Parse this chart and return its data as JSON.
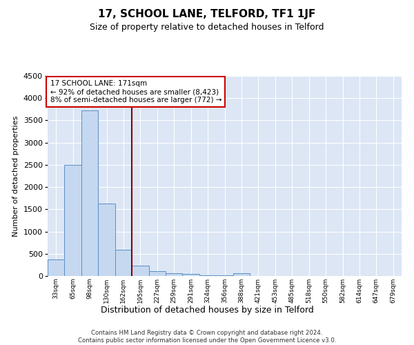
{
  "title": "17, SCHOOL LANE, TELFORD, TF1 1JF",
  "subtitle": "Size of property relative to detached houses in Telford",
  "xlabel": "Distribution of detached houses by size in Telford",
  "ylabel": "Number of detached properties",
  "categories": [
    "33sqm",
    "65sqm",
    "98sqm",
    "130sqm",
    "162sqm",
    "195sqm",
    "227sqm",
    "259sqm",
    "291sqm",
    "324sqm",
    "356sqm",
    "388sqm",
    "421sqm",
    "453sqm",
    "485sqm",
    "518sqm",
    "550sqm",
    "582sqm",
    "614sqm",
    "647sqm",
    "679sqm"
  ],
  "values": [
    370,
    2500,
    3720,
    1630,
    590,
    235,
    110,
    68,
    40,
    20,
    10,
    55,
    0,
    0,
    0,
    0,
    0,
    0,
    0,
    0,
    0
  ],
  "bar_color": "#c5d8f0",
  "bar_edge_color": "#5b8ec4",
  "vline_x": 4.5,
  "vline_color": "#8b0000",
  "annotation_text": "17 SCHOOL LANE: 171sqm\n← 92% of detached houses are smaller (8,423)\n8% of semi-detached houses are larger (772) →",
  "annotation_box_color": "#cc0000",
  "annotation_fontsize": 7.5,
  "ylim": [
    0,
    4500
  ],
  "yticks": [
    0,
    500,
    1000,
    1500,
    2000,
    2500,
    3000,
    3500,
    4000,
    4500
  ],
  "bg_color": "#dce6f5",
  "grid_color": "#ffffff",
  "footer": "Contains HM Land Registry data © Crown copyright and database right 2024.\nContains public sector information licensed under the Open Government Licence v3.0."
}
